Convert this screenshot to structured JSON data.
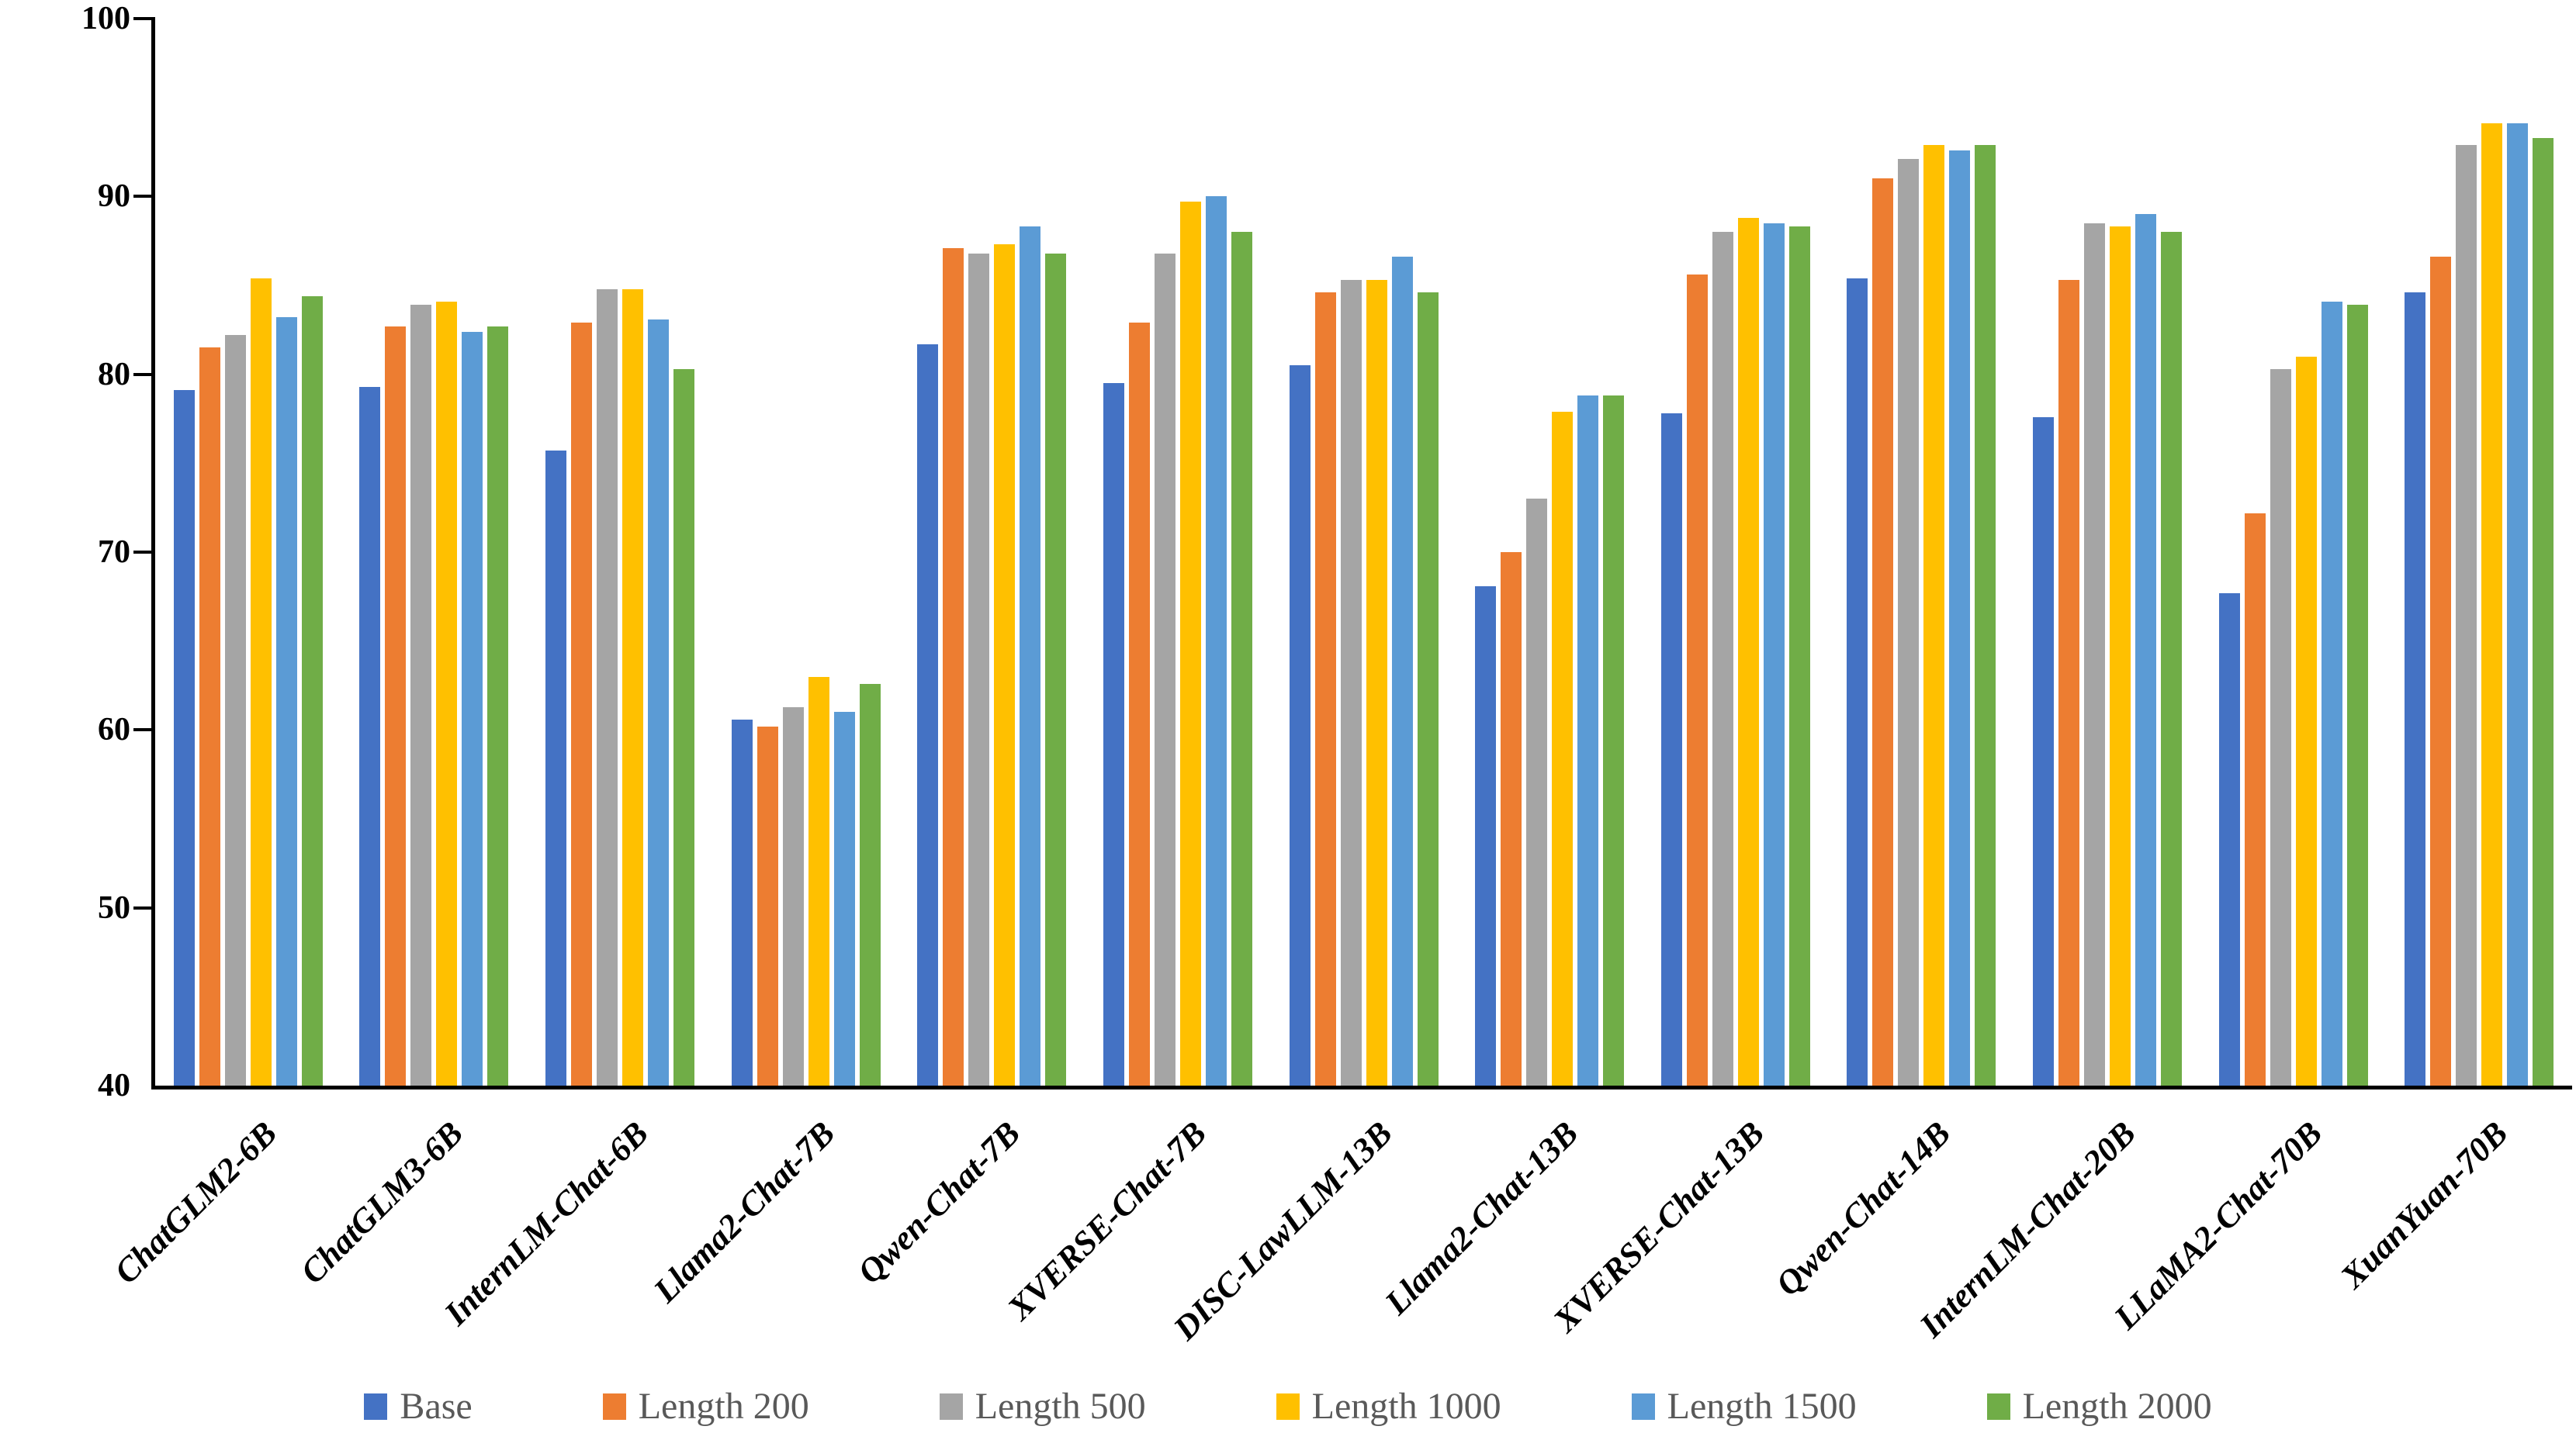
{
  "chart_data": {
    "type": "bar",
    "title": "",
    "categories": [
      "ChatGLM2-6B",
      "ChatGLM3-6B",
      "InternLM-Chat-6B",
      "Llama2-Chat-7B",
      "Qwen-Chat-7B",
      "XVERSE-Chat-7B",
      "DISC-LawLLM-13B",
      "Llama2-Chat-13B",
      "XVERSE-Chat-13B",
      "Qwen-Chat-14B",
      "InternLM-Chat-20B",
      "LLaMA2-Chat-70B",
      "XuanYuan-70B"
    ],
    "series": [
      {
        "name": "Base",
        "color": "#4472C4",
        "values": [
          79.1,
          79.3,
          75.7,
          60.6,
          81.7,
          79.5,
          80.5,
          68.1,
          77.8,
          85.4,
          77.6,
          67.7,
          84.6
        ]
      },
      {
        "name": "Length 200",
        "color": "#ED7D31",
        "values": [
          81.5,
          82.7,
          82.9,
          60.2,
          87.1,
          82.9,
          84.6,
          70.0,
          85.6,
          91.0,
          85.3,
          72.2,
          86.6
        ]
      },
      {
        "name": "Length 500",
        "color": "#A5A5A5",
        "values": [
          82.2,
          83.9,
          84.8,
          61.3,
          86.8,
          86.8,
          85.3,
          73.0,
          88.0,
          92.1,
          88.5,
          80.3,
          92.9
        ]
      },
      {
        "name": "Length 1000",
        "color": "#FFC000",
        "values": [
          85.4,
          84.1,
          84.8,
          63.0,
          87.3,
          89.7,
          85.3,
          77.9,
          88.8,
          92.9,
          88.3,
          81.0,
          94.1
        ]
      },
      {
        "name": "Length 1500",
        "color": "#5B9BD5",
        "values": [
          83.2,
          82.4,
          83.1,
          61.0,
          88.3,
          90.0,
          86.6,
          78.8,
          88.5,
          92.6,
          89.0,
          84.1,
          94.1
        ]
      },
      {
        "name": "Length 2000",
        "color": "#70AD47",
        "values": [
          84.4,
          82.7,
          80.3,
          62.6,
          86.8,
          88.0,
          84.6,
          78.8,
          88.3,
          92.9,
          88.0,
          83.9,
          93.3
        ]
      }
    ],
    "ylim": [
      40,
      100
    ],
    "yticks": [
      40,
      50,
      60,
      70,
      80,
      90,
      100
    ],
    "xlabel": "",
    "ylabel": "",
    "grid": false,
    "legend_position": "bottom",
    "axis_color": "#000000",
    "legend_text_color": "#595959"
  }
}
